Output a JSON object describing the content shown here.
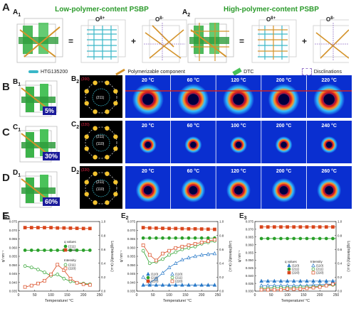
{
  "panel_a": {
    "letter": "A",
    "a1_label": "A",
    "a1_sub": "1",
    "a1_title": "Low-polymer-content PSBP",
    "a2_label": "A",
    "a2_sub": "2",
    "a2_title": "High-polymer-content PSBP",
    "o8p": "O",
    "o8p_sup": "8+",
    "o8m": "O",
    "o8m_sup": "8-",
    "eq": "=",
    "plus": "+",
    "legend": [
      "HTG135200",
      "Polymerizable component",
      "DTC",
      "Disclinations"
    ]
  },
  "rows": [
    {
      "letter": "B",
      "l1": "B",
      "l1s": "1",
      "l2": "B",
      "l2s": "2",
      "l3": "B",
      "l3s": "3",
      "badge": "5%",
      "hkl_top": "(200)",
      "hkl_inner": "(211)",
      "temps": [
        "20 °C",
        "60 °C",
        "120 °C",
        "200 °C",
        "220 °C"
      ]
    },
    {
      "letter": "C",
      "l1": "C",
      "l1s": "1",
      "l2": "C",
      "l2s": "2",
      "l3": "C",
      "l3s": "3",
      "badge": "30%",
      "hkl_top": "(220)",
      "hkl_inner": "(211)",
      "hkl_center": "(110)",
      "temps": [
        "20 °C",
        "60 °C",
        "100 °C",
        "200 °C",
        "240 °C"
      ]
    },
    {
      "letter": "D",
      "l1": "D",
      "l1s": "1",
      "l2": "D",
      "l2s": "2",
      "l3": "D",
      "l3s": "3",
      "badge": "60%",
      "hkl_top": "(220)",
      "hkl_inner": "(211)",
      "hkl_center": "(110)",
      "temps": [
        "20 °C",
        "60 °C",
        "120 °C",
        "200 °C",
        "260 °C"
      ]
    }
  ],
  "panel_e": {
    "letter": "E"
  },
  "chart_data": [
    {
      "type": "line",
      "label": "E1",
      "xlabel": "Temperature/ °C",
      "ylabel": "q/ nm⁻¹",
      "ylabel_right": "Log(Intensity) (a.u.)",
      "xlim": [
        0,
        250
      ],
      "ylim": [
        0.035,
        0.075
      ],
      "ylim_right": [
        0.0,
        1.0
      ],
      "xticks": [
        0,
        50,
        100,
        150,
        200,
        250
      ],
      "yticks": [
        0.035,
        0.04,
        0.045,
        0.05,
        0.055,
        0.06,
        0.065,
        0.07,
        0.075
      ],
      "yticks_right": [
        0.0,
        0.2,
        0.4,
        0.6,
        0.8,
        1.0
      ],
      "legend_q_title": "q values",
      "legend_i_title": "Intensity",
      "series": [
        {
          "name": "(211)",
          "group": "q",
          "axis": "left",
          "color": "#2aa02a",
          "marker": "circle-filled",
          "x": [
            20,
            40,
            60,
            80,
            100,
            120,
            140,
            160,
            180,
            200,
            220
          ],
          "y": [
            0.0585,
            0.0585,
            0.0585,
            0.0585,
            0.0585,
            0.0585,
            0.0585,
            0.0585,
            0.0585,
            0.0585,
            0.0585
          ]
        },
        {
          "name": "(220)",
          "group": "q",
          "axis": "left",
          "color": "#d9461c",
          "marker": "square-filled",
          "x": [
            20,
            40,
            60,
            80,
            100,
            120,
            140,
            160,
            180,
            200,
            220
          ],
          "y": [
            0.0715,
            0.0715,
            0.0715,
            0.0715,
            0.0715,
            0.0713,
            0.0713,
            0.0712,
            0.0711,
            0.071,
            0.071
          ]
        },
        {
          "name": "(211)",
          "group": "i",
          "axis": "right",
          "color": "#2aa02a",
          "marker": "circle-open",
          "x": [
            20,
            40,
            60,
            80,
            100,
            120,
            140,
            160,
            180,
            200,
            220
          ],
          "y": [
            0.36,
            0.34,
            0.31,
            0.27,
            0.22,
            0.24,
            0.18,
            0.14,
            0.12,
            0.11,
            0.1
          ]
        },
        {
          "name": "(220)",
          "group": "i",
          "axis": "right",
          "color": "#d9461c",
          "marker": "square-open",
          "x": [
            20,
            40,
            60,
            80,
            100,
            120,
            140,
            160,
            180,
            200,
            220
          ],
          "y": [
            0.06,
            0.08,
            0.11,
            0.15,
            0.24,
            0.38,
            0.3,
            0.18,
            0.12,
            0.1,
            0.09
          ]
        }
      ]
    },
    {
      "type": "line",
      "label": "E2",
      "xlabel": "Temperature/ °C",
      "ylabel": "q/ nm⁻¹",
      "ylabel_right": "Log(Intensity) (a.u.)",
      "xlim": [
        0,
        250
      ],
      "ylim": [
        0.035,
        0.075
      ],
      "ylim_right": [
        0.0,
        1.0
      ],
      "xticks": [
        0,
        50,
        100,
        150,
        200,
        250
      ],
      "yticks": [
        0.035,
        0.04,
        0.045,
        0.05,
        0.055,
        0.06,
        0.065,
        0.07,
        0.075
      ],
      "yticks_right": [
        0.0,
        0.2,
        0.4,
        0.6,
        0.8,
        1.0
      ],
      "series": [
        {
          "name": "(110)",
          "axis": "left",
          "color": "#2a7ac9",
          "marker": "triangle-filled",
          "x": [
            20,
            40,
            60,
            80,
            100,
            120,
            140,
            160,
            180,
            200,
            220,
            240
          ],
          "y": [
            0.0385,
            0.0385,
            0.0385,
            0.0385,
            0.0385,
            0.0385,
            0.0385,
            0.0385,
            0.0385,
            0.0385,
            0.0385,
            0.0385
          ]
        },
        {
          "name": "(211)",
          "axis": "left",
          "color": "#2aa02a",
          "marker": "circle-filled",
          "x": [
            20,
            40,
            60,
            80,
            100,
            120,
            140,
            160,
            180,
            200,
            220,
            240
          ],
          "y": [
            0.0655,
            0.0655,
            0.0655,
            0.0655,
            0.0655,
            0.0655,
            0.0655,
            0.0655,
            0.0655,
            0.0655,
            0.0655,
            0.0655
          ]
        },
        {
          "name": "(220)",
          "axis": "left",
          "color": "#d9461c",
          "marker": "square-filled",
          "x": [
            20,
            40,
            60,
            80,
            100,
            120,
            140,
            160,
            180,
            200,
            220,
            240
          ],
          "y": [
            0.0715,
            0.0713,
            0.0712,
            0.0711,
            0.071,
            0.071,
            0.0709,
            0.0708,
            0.0708,
            0.0707,
            0.0706,
            0.0705
          ]
        },
        {
          "name": "(110)",
          "axis": "right",
          "color": "#2a7ac9",
          "marker": "triangle-open",
          "x": [
            20,
            40,
            60,
            80,
            100,
            120,
            140,
            160,
            180,
            200,
            220,
            240
          ],
          "y": [
            0.2,
            0.12,
            0.18,
            0.26,
            0.34,
            0.4,
            0.45,
            0.48,
            0.5,
            0.52,
            0.53,
            0.54
          ]
        },
        {
          "name": "(211)",
          "axis": "right",
          "color": "#2aa02a",
          "marker": "circle-open",
          "x": [
            20,
            40,
            60,
            80,
            100,
            120,
            140,
            160,
            180,
            200,
            220,
            240
          ],
          "y": [
            0.58,
            0.4,
            0.42,
            0.46,
            0.52,
            0.56,
            0.6,
            0.62,
            0.64,
            0.68,
            0.7,
            0.72
          ]
        },
        {
          "name": "(220)",
          "axis": "right",
          "color": "#d9461c",
          "marker": "square-open",
          "x": [
            20,
            40,
            60,
            80,
            100,
            120,
            140,
            160,
            180,
            200,
            220,
            240
          ],
          "y": [
            0.66,
            0.52,
            0.44,
            0.54,
            0.58,
            0.62,
            0.64,
            0.66,
            0.68,
            0.7,
            0.72,
            0.74
          ]
        }
      ]
    },
    {
      "type": "line",
      "label": "E3",
      "xlabel": "Temperature/ °C",
      "ylabel": "q/ nm⁻¹",
      "ylabel_right": "Log(Intensity) (a.u.)",
      "xlim": [
        0,
        250
      ],
      "ylim": [
        0.03,
        0.075
      ],
      "ylim_right": [
        0.0,
        1.0
      ],
      "xticks": [
        0,
        50,
        100,
        150,
        200,
        250
      ],
      "yticks": [
        0.03,
        0.035,
        0.04,
        0.045,
        0.05,
        0.055,
        0.06,
        0.065,
        0.07,
        0.075
      ],
      "yticks_right": [
        0.0,
        0.2,
        0.4,
        0.6,
        0.8,
        1.0
      ],
      "legend_q_title": "q values",
      "legend_i_title": "Intensity",
      "series": [
        {
          "name": "(110)",
          "group": "q",
          "axis": "left",
          "color": "#2a7ac9",
          "marker": "triangle-filled",
          "x": [
            20,
            40,
            60,
            80,
            100,
            120,
            140,
            160,
            180,
            200,
            220,
            240,
            260
          ],
          "y": [
            0.0365,
            0.0365,
            0.0365,
            0.0365,
            0.0365,
            0.0365,
            0.0365,
            0.0365,
            0.0365,
            0.0365,
            0.0365,
            0.0365,
            0.0365
          ]
        },
        {
          "name": "(211)",
          "group": "q",
          "axis": "left",
          "color": "#2aa02a",
          "marker": "circle-filled",
          "x": [
            20,
            40,
            60,
            80,
            100,
            120,
            140,
            160,
            180,
            200,
            220,
            240,
            260
          ],
          "y": [
            0.064,
            0.064,
            0.064,
            0.064,
            0.064,
            0.064,
            0.064,
            0.064,
            0.064,
            0.064,
            0.064,
            0.064,
            0.064
          ]
        },
        {
          "name": "(220)",
          "group": "q",
          "axis": "left",
          "color": "#d9461c",
          "marker": "square-filled",
          "x": [
            20,
            40,
            60,
            80,
            100,
            120,
            140,
            160,
            180,
            200,
            220,
            240,
            260
          ],
          "y": [
            0.0715,
            0.0715,
            0.0715,
            0.0715,
            0.0715,
            0.0715,
            0.0715,
            0.0715,
            0.0715,
            0.0715,
            0.0715,
            0.0715,
            0.0715
          ]
        },
        {
          "name": "(110)",
          "group": "i",
          "axis": "right",
          "color": "#2a7ac9",
          "marker": "triangle-open",
          "x": [
            20,
            40,
            60,
            80,
            100,
            120,
            140,
            160,
            180,
            200,
            220,
            240,
            260
          ],
          "y": [
            0.08,
            0.08,
            0.08,
            0.08,
            0.08,
            0.08,
            0.08,
            0.08,
            0.09,
            0.09,
            0.1,
            0.1,
            0.1
          ]
        },
        {
          "name": "(211)",
          "group": "i",
          "axis": "right",
          "color": "#2aa02a",
          "marker": "circle-open",
          "x": [
            20,
            40,
            60,
            80,
            100,
            120,
            140,
            160,
            180,
            200,
            220,
            240,
            260
          ],
          "y": [
            0.04,
            0.04,
            0.05,
            0.05,
            0.05,
            0.05,
            0.06,
            0.06,
            0.06,
            0.07,
            0.08,
            0.09,
            0.09
          ]
        },
        {
          "name": "(220)",
          "group": "i",
          "axis": "right",
          "color": "#d9461c",
          "marker": "square-open",
          "x": [
            20,
            40,
            60,
            80,
            100,
            120,
            140,
            160,
            180,
            200,
            220,
            240,
            260
          ],
          "y": [
            0.02,
            0.02,
            0.02,
            0.02,
            0.03,
            0.03,
            0.03,
            0.04,
            0.05,
            0.06,
            0.08,
            0.1,
            0.12
          ]
        }
      ]
    }
  ]
}
